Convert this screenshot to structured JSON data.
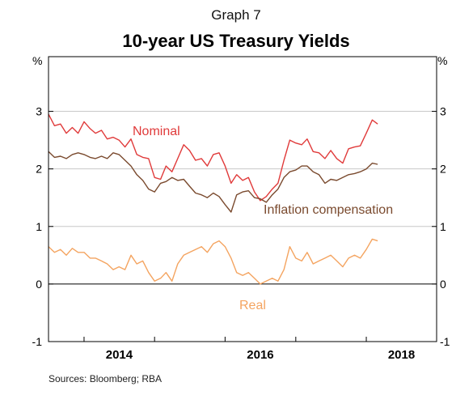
{
  "header": {
    "graph_number": "Graph 7",
    "title": "10-year US Treasury Yields"
  },
  "footer": {
    "sources": "Sources:  Bloomberg; RBA"
  },
  "chart_data": {
    "type": "line",
    "title": "10-year US Treasury Yields",
    "unit_left": "%",
    "unit_right": "%",
    "ylim": [
      -1,
      3.95
    ],
    "y_ticks": [
      {
        "value": 3,
        "label": "3"
      },
      {
        "value": 2,
        "label": "2"
      },
      {
        "value": 1,
        "label": "1"
      },
      {
        "value": 0,
        "label": "0"
      },
      {
        "value": -1,
        "label": "-1"
      }
    ],
    "xlim": [
      "2013-07-01",
      "2018-12-31"
    ],
    "x_ticks": [
      {
        "label": "2014",
        "start": "2014-01-01",
        "end": "2014-12-31"
      },
      {
        "label": "2016",
        "start": "2016-01-01",
        "end": "2016-12-31"
      },
      {
        "label": "2018",
        "start": "2018-01-01",
        "end": "2018-12-31"
      }
    ],
    "grid": true,
    "colors": {
      "nominal": "#e03a3a",
      "inflation_compensation": "#7a4a2e",
      "real": "#f4a460",
      "grid": "#c8c8c8",
      "zero_line": "#000000"
    },
    "series": [
      {
        "key": "nominal",
        "name": "Nominal",
        "points": [
          [
            "2013-07-01",
            2.95
          ],
          [
            "2013-08-01",
            2.75
          ],
          [
            "2013-09-01",
            2.78
          ],
          [
            "2013-10-01",
            2.62
          ],
          [
            "2013-11-01",
            2.72
          ],
          [
            "2013-12-01",
            2.62
          ],
          [
            "2014-01-01",
            2.82
          ],
          [
            "2014-02-01",
            2.7
          ],
          [
            "2014-03-01",
            2.62
          ],
          [
            "2014-04-01",
            2.67
          ],
          [
            "2014-05-01",
            2.52
          ],
          [
            "2014-06-01",
            2.55
          ],
          [
            "2014-07-01",
            2.5
          ],
          [
            "2014-08-01",
            2.38
          ],
          [
            "2014-09-01",
            2.52
          ],
          [
            "2014-10-01",
            2.25
          ],
          [
            "2014-11-01",
            2.2
          ],
          [
            "2014-12-01",
            2.18
          ],
          [
            "2015-01-01",
            1.85
          ],
          [
            "2015-02-01",
            1.82
          ],
          [
            "2015-03-01",
            2.05
          ],
          [
            "2015-04-01",
            1.95
          ],
          [
            "2015-05-01",
            2.18
          ],
          [
            "2015-06-01",
            2.42
          ],
          [
            "2015-07-01",
            2.32
          ],
          [
            "2015-08-01",
            2.15
          ],
          [
            "2015-09-01",
            2.18
          ],
          [
            "2015-10-01",
            2.05
          ],
          [
            "2015-11-01",
            2.25
          ],
          [
            "2015-12-01",
            2.28
          ],
          [
            "2016-01-01",
            2.05
          ],
          [
            "2016-02-01",
            1.75
          ],
          [
            "2016-03-01",
            1.9
          ],
          [
            "2016-04-01",
            1.8
          ],
          [
            "2016-05-01",
            1.85
          ],
          [
            "2016-06-01",
            1.6
          ],
          [
            "2016-07-01",
            1.45
          ],
          [
            "2016-08-01",
            1.52
          ],
          [
            "2016-09-01",
            1.65
          ],
          [
            "2016-10-01",
            1.75
          ],
          [
            "2016-11-01",
            2.15
          ],
          [
            "2016-12-01",
            2.5
          ],
          [
            "2017-01-01",
            2.45
          ],
          [
            "2017-02-01",
            2.42
          ],
          [
            "2017-03-01",
            2.52
          ],
          [
            "2017-04-01",
            2.3
          ],
          [
            "2017-05-01",
            2.28
          ],
          [
            "2017-06-01",
            2.18
          ],
          [
            "2017-07-01",
            2.32
          ],
          [
            "2017-08-01",
            2.18
          ],
          [
            "2017-09-01",
            2.1
          ],
          [
            "2017-10-01",
            2.35
          ],
          [
            "2017-11-01",
            2.38
          ],
          [
            "2017-12-01",
            2.4
          ],
          [
            "2018-01-01",
            2.62
          ],
          [
            "2018-02-01",
            2.85
          ],
          [
            "2018-03-01",
            2.78
          ]
        ]
      },
      {
        "key": "inflation_compensation",
        "name": "Inflation compensation",
        "points": [
          [
            "2013-07-01",
            2.3
          ],
          [
            "2013-08-01",
            2.2
          ],
          [
            "2013-09-01",
            2.22
          ],
          [
            "2013-10-01",
            2.18
          ],
          [
            "2013-11-01",
            2.25
          ],
          [
            "2013-12-01",
            2.28
          ],
          [
            "2014-01-01",
            2.25
          ],
          [
            "2014-02-01",
            2.2
          ],
          [
            "2014-03-01",
            2.18
          ],
          [
            "2014-04-01",
            2.22
          ],
          [
            "2014-05-01",
            2.18
          ],
          [
            "2014-06-01",
            2.28
          ],
          [
            "2014-07-01",
            2.25
          ],
          [
            "2014-08-01",
            2.15
          ],
          [
            "2014-09-01",
            2.05
          ],
          [
            "2014-10-01",
            1.9
          ],
          [
            "2014-11-01",
            1.8
          ],
          [
            "2014-12-01",
            1.65
          ],
          [
            "2015-01-01",
            1.6
          ],
          [
            "2015-02-01",
            1.75
          ],
          [
            "2015-03-01",
            1.78
          ],
          [
            "2015-04-01",
            1.85
          ],
          [
            "2015-05-01",
            1.8
          ],
          [
            "2015-06-01",
            1.82
          ],
          [
            "2015-07-01",
            1.7
          ],
          [
            "2015-08-01",
            1.58
          ],
          [
            "2015-09-01",
            1.55
          ],
          [
            "2015-10-01",
            1.5
          ],
          [
            "2015-11-01",
            1.58
          ],
          [
            "2015-12-01",
            1.52
          ],
          [
            "2016-01-01",
            1.38
          ],
          [
            "2016-02-01",
            1.25
          ],
          [
            "2016-03-01",
            1.55
          ],
          [
            "2016-04-01",
            1.6
          ],
          [
            "2016-05-01",
            1.62
          ],
          [
            "2016-06-01",
            1.5
          ],
          [
            "2016-07-01",
            1.48
          ],
          [
            "2016-08-01",
            1.42
          ],
          [
            "2016-09-01",
            1.55
          ],
          [
            "2016-10-01",
            1.65
          ],
          [
            "2016-11-01",
            1.85
          ],
          [
            "2016-12-01",
            1.95
          ],
          [
            "2017-01-01",
            1.98
          ],
          [
            "2017-02-01",
            2.05
          ],
          [
            "2017-03-01",
            2.05
          ],
          [
            "2017-04-01",
            1.95
          ],
          [
            "2017-05-01",
            1.9
          ],
          [
            "2017-06-01",
            1.75
          ],
          [
            "2017-07-01",
            1.82
          ],
          [
            "2017-08-01",
            1.8
          ],
          [
            "2017-09-01",
            1.85
          ],
          [
            "2017-10-01",
            1.9
          ],
          [
            "2017-11-01",
            1.92
          ],
          [
            "2017-12-01",
            1.95
          ],
          [
            "2018-01-01",
            2.0
          ],
          [
            "2018-02-01",
            2.1
          ],
          [
            "2018-03-01",
            2.08
          ]
        ]
      },
      {
        "key": "real",
        "name": "Real",
        "points": [
          [
            "2013-07-01",
            0.65
          ],
          [
            "2013-08-01",
            0.55
          ],
          [
            "2013-09-01",
            0.6
          ],
          [
            "2013-10-01",
            0.5
          ],
          [
            "2013-11-01",
            0.62
          ],
          [
            "2013-12-01",
            0.55
          ],
          [
            "2014-01-01",
            0.55
          ],
          [
            "2014-02-01",
            0.45
          ],
          [
            "2014-03-01",
            0.45
          ],
          [
            "2014-04-01",
            0.4
          ],
          [
            "2014-05-01",
            0.35
          ],
          [
            "2014-06-01",
            0.25
          ],
          [
            "2014-07-01",
            0.3
          ],
          [
            "2014-08-01",
            0.25
          ],
          [
            "2014-09-01",
            0.5
          ],
          [
            "2014-10-01",
            0.35
          ],
          [
            "2014-11-01",
            0.4
          ],
          [
            "2014-12-01",
            0.2
          ],
          [
            "2015-01-01",
            0.05
          ],
          [
            "2015-02-01",
            0.1
          ],
          [
            "2015-03-01",
            0.2
          ],
          [
            "2015-04-01",
            0.05
          ],
          [
            "2015-05-01",
            0.35
          ],
          [
            "2015-06-01",
            0.5
          ],
          [
            "2015-07-01",
            0.55
          ],
          [
            "2015-08-01",
            0.6
          ],
          [
            "2015-09-01",
            0.65
          ],
          [
            "2015-10-01",
            0.55
          ],
          [
            "2015-11-01",
            0.7
          ],
          [
            "2015-12-01",
            0.75
          ],
          [
            "2016-01-01",
            0.65
          ],
          [
            "2016-02-01",
            0.45
          ],
          [
            "2016-03-01",
            0.2
          ],
          [
            "2016-04-01",
            0.15
          ],
          [
            "2016-05-01",
            0.2
          ],
          [
            "2016-06-01",
            0.1
          ],
          [
            "2016-07-01",
            0.0
          ],
          [
            "2016-08-01",
            0.05
          ],
          [
            "2016-09-01",
            0.1
          ],
          [
            "2016-10-01",
            0.05
          ],
          [
            "2016-11-01",
            0.25
          ],
          [
            "2016-12-01",
            0.65
          ],
          [
            "2017-01-01",
            0.45
          ],
          [
            "2017-02-01",
            0.4
          ],
          [
            "2017-03-01",
            0.55
          ],
          [
            "2017-04-01",
            0.35
          ],
          [
            "2017-05-01",
            0.4
          ],
          [
            "2017-06-01",
            0.45
          ],
          [
            "2017-07-01",
            0.5
          ],
          [
            "2017-08-01",
            0.4
          ],
          [
            "2017-09-01",
            0.3
          ],
          [
            "2017-10-01",
            0.45
          ],
          [
            "2017-11-01",
            0.5
          ],
          [
            "2017-12-01",
            0.45
          ],
          [
            "2018-01-01",
            0.6
          ],
          [
            "2018-02-01",
            0.78
          ],
          [
            "2018-03-01",
            0.75
          ]
        ]
      }
    ]
  }
}
